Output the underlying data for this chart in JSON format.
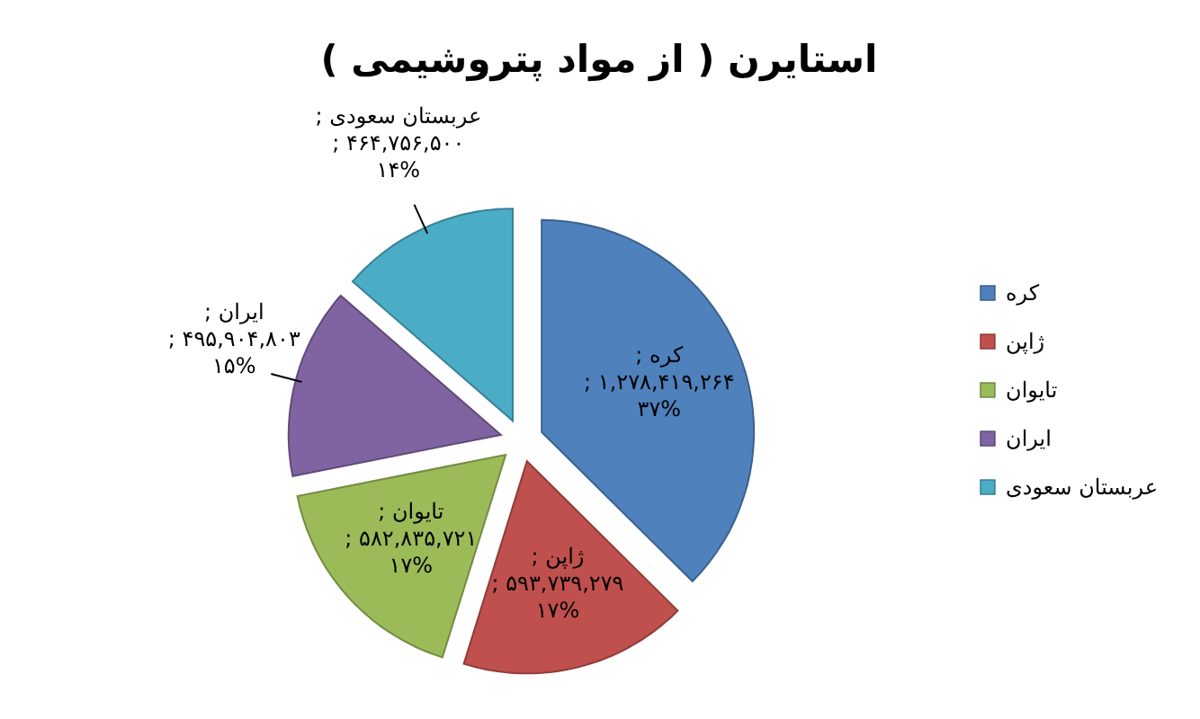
{
  "chart_data": {
    "type": "pie",
    "title": "استایرن ( از مواد پتروشیمی )",
    "categories": [
      "کره",
      "ژاپن",
      "تایوان",
      "ایران",
      "عربستان سعودی"
    ],
    "values": [
      1278419264,
      593739279,
      582835721,
      495904803,
      464756500
    ],
    "colors": [
      "#4f81bd",
      "#c0504d",
      "#9bbb59",
      "#8064a2",
      "#4bacc6"
    ],
    "value_labels": [
      "; ۱,۲۷۸,۴۱۹,۲۶۴ ; ۳۷%",
      "; ۵۹۳,۷۳۹,۲۷۹ ; ۱۷%",
      "; ۵۸۲,۸۳۵,۷۲۱ ; ۱۷%",
      "; ۴۹۵,۹۰۴,۸۰۳ ; ۱۵%",
      "; ۴۶۴,۷۵۶,۵۰۰ ; ۱۴%"
    ],
    "legend": "right"
  }
}
